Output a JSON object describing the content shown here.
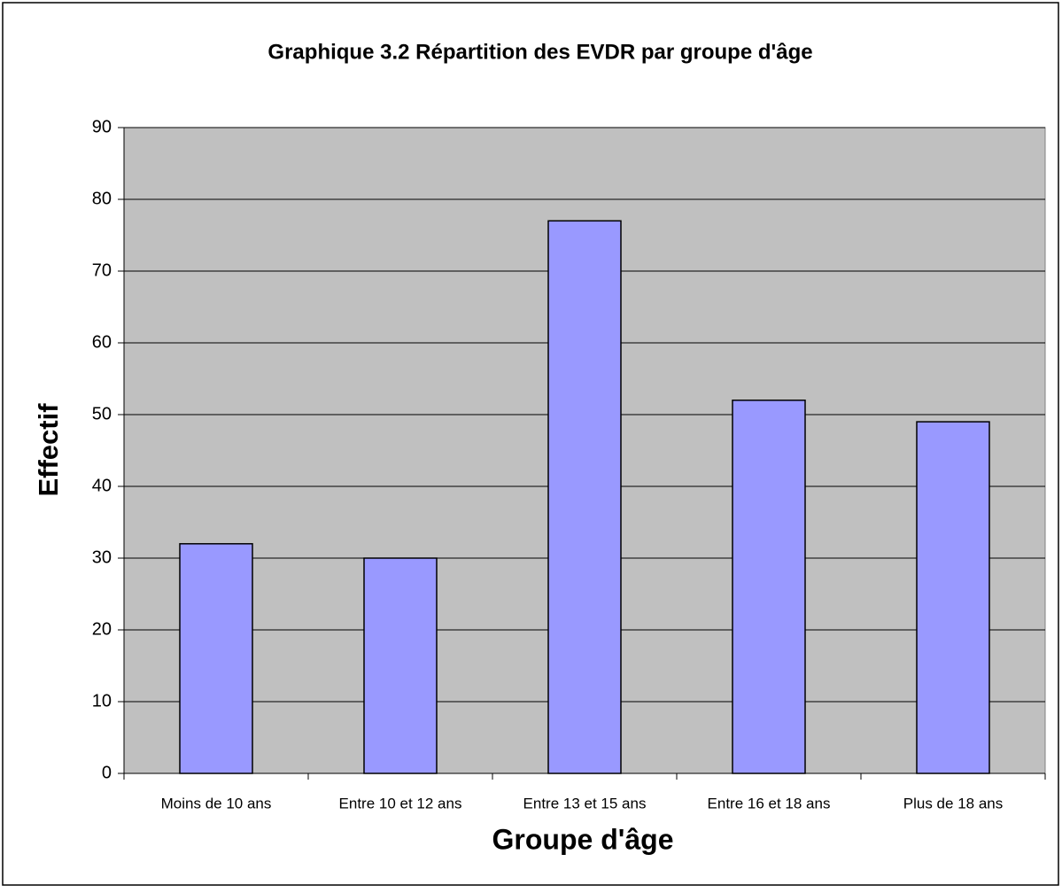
{
  "chart_data": {
    "type": "bar",
    "title": "Graphique 3.2 Répartition des EVDR par groupe d'âge",
    "x_label": "Groupe d'âge",
    "y_label": "Effectif",
    "categories": [
      "Moins de 10 ans",
      "Entre 10 et 12 ans",
      "Entre 13 et 15 ans",
      "Entre 16 et 18 ans",
      "Plus de 18 ans"
    ],
    "values": [
      32,
      30,
      77,
      52,
      49
    ],
    "color": "#9999ff",
    "ylim": [
      0,
      90
    ],
    "yticks": [
      0,
      10,
      20,
      30,
      40,
      50,
      60,
      70,
      80,
      90
    ],
    "grid": true
  }
}
